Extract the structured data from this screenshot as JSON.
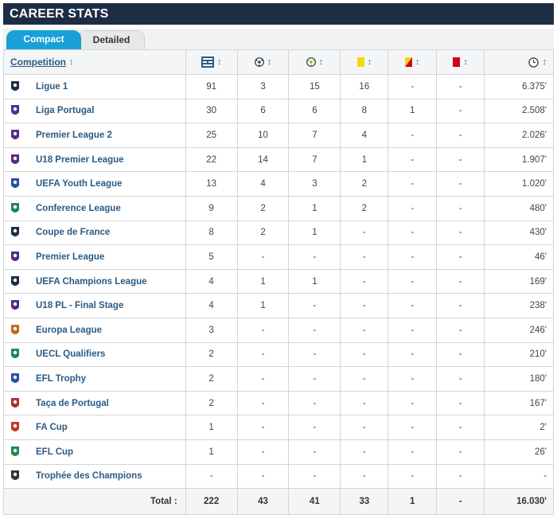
{
  "header": {
    "title": "CAREER STATS"
  },
  "tabs": [
    {
      "label": "Compact",
      "active": true
    },
    {
      "label": "Detailed",
      "active": false
    }
  ],
  "columns": {
    "competition": "Competition",
    "appearances_icon": "lineup-icon",
    "goals_icon": "ball-icon",
    "assists_icon": "assist-ball-icon",
    "yellow_icon": "yellow-card-icon",
    "yellow_red_icon": "yellow-red-card-icon",
    "red_icon": "red-card-icon",
    "minutes_icon": "clock-icon"
  },
  "rows": [
    {
      "competition": "Ligue 1",
      "apps": "91",
      "goals": "3",
      "assists": "15",
      "yellow": "16",
      "yellow_red": "-",
      "red": "-",
      "minutes": "6.375'"
    },
    {
      "competition": "Liga Portugal",
      "apps": "30",
      "goals": "6",
      "assists": "6",
      "yellow": "8",
      "yellow_red": "1",
      "red": "-",
      "minutes": "2.508'"
    },
    {
      "competition": "Premier League 2",
      "apps": "25",
      "goals": "10",
      "assists": "7",
      "yellow": "4",
      "yellow_red": "-",
      "red": "-",
      "minutes": "2.026'"
    },
    {
      "competition": "U18 Premier League",
      "apps": "22",
      "goals": "14",
      "assists": "7",
      "yellow": "1",
      "yellow_red": "-",
      "red": "-",
      "minutes": "1.907'"
    },
    {
      "competition": "UEFA Youth League",
      "apps": "13",
      "goals": "4",
      "assists": "3",
      "yellow": "2",
      "yellow_red": "-",
      "red": "-",
      "minutes": "1.020'"
    },
    {
      "competition": "Conference League",
      "apps": "9",
      "goals": "2",
      "assists": "1",
      "yellow": "2",
      "yellow_red": "-",
      "red": "-",
      "minutes": "480'"
    },
    {
      "competition": "Coupe de France",
      "apps": "8",
      "goals": "2",
      "assists": "1",
      "yellow": "-",
      "yellow_red": "-",
      "red": "-",
      "minutes": "430'"
    },
    {
      "competition": "Premier League",
      "apps": "5",
      "goals": "-",
      "assists": "-",
      "yellow": "-",
      "yellow_red": "-",
      "red": "-",
      "minutes": "46'"
    },
    {
      "competition": "UEFA Champions League",
      "apps": "4",
      "goals": "1",
      "assists": "1",
      "yellow": "-",
      "yellow_red": "-",
      "red": "-",
      "minutes": "169'"
    },
    {
      "competition": "U18 PL - Final Stage",
      "apps": "4",
      "goals": "1",
      "assists": "-",
      "yellow": "-",
      "yellow_red": "-",
      "red": "-",
      "minutes": "238'"
    },
    {
      "competition": "Europa League",
      "apps": "3",
      "goals": "-",
      "assists": "-",
      "yellow": "-",
      "yellow_red": "-",
      "red": "-",
      "minutes": "246'"
    },
    {
      "competition": "UECL Qualifiers",
      "apps": "2",
      "goals": "-",
      "assists": "-",
      "yellow": "-",
      "yellow_red": "-",
      "red": "-",
      "minutes": "210'"
    },
    {
      "competition": "EFL Trophy",
      "apps": "2",
      "goals": "-",
      "assists": "-",
      "yellow": "-",
      "yellow_red": "-",
      "red": "-",
      "minutes": "180'"
    },
    {
      "competition": "Taça de Portugal",
      "apps": "2",
      "goals": "-",
      "assists": "-",
      "yellow": "-",
      "yellow_red": "-",
      "red": "-",
      "minutes": "167'"
    },
    {
      "competition": "FA Cup",
      "apps": "1",
      "goals": "-",
      "assists": "-",
      "yellow": "-",
      "yellow_red": "-",
      "red": "-",
      "minutes": "2'"
    },
    {
      "competition": "EFL Cup",
      "apps": "1",
      "goals": "-",
      "assists": "-",
      "yellow": "-",
      "yellow_red": "-",
      "red": "-",
      "minutes": "26'"
    },
    {
      "competition": "Trophée des Champions",
      "apps": "-",
      "goals": "-",
      "assists": "-",
      "yellow": "-",
      "yellow_red": "-",
      "red": "-",
      "minutes": "-"
    }
  ],
  "total": {
    "label": "Total :",
    "apps": "222",
    "goals": "43",
    "assists": "41",
    "yellow": "33",
    "yellow_red": "1",
    "red": "-",
    "minutes": "16.030'"
  },
  "colors": {
    "header_bg": "#1d2d44",
    "tab_active": "#1aa0d8",
    "link": "#2b5b84",
    "sort_arrow": "#2a8ccf",
    "yellow_card": "#f5d90a",
    "red_card": "#d0021b"
  }
}
